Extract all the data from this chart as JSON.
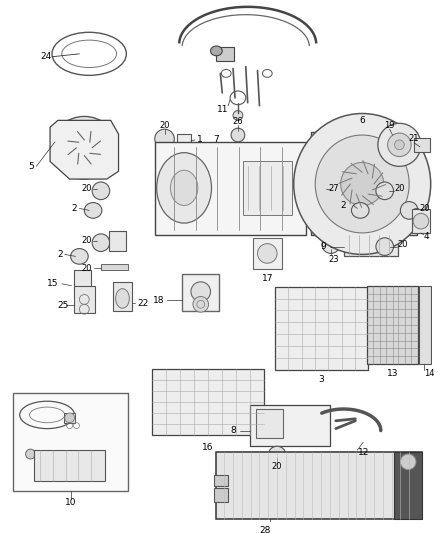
{
  "bg_color": "#ffffff",
  "fig_width": 4.38,
  "fig_height": 5.33,
  "dpi": 100,
  "line_color": "#333333",
  "label_color": "#000000",
  "label_fs": 6.5
}
